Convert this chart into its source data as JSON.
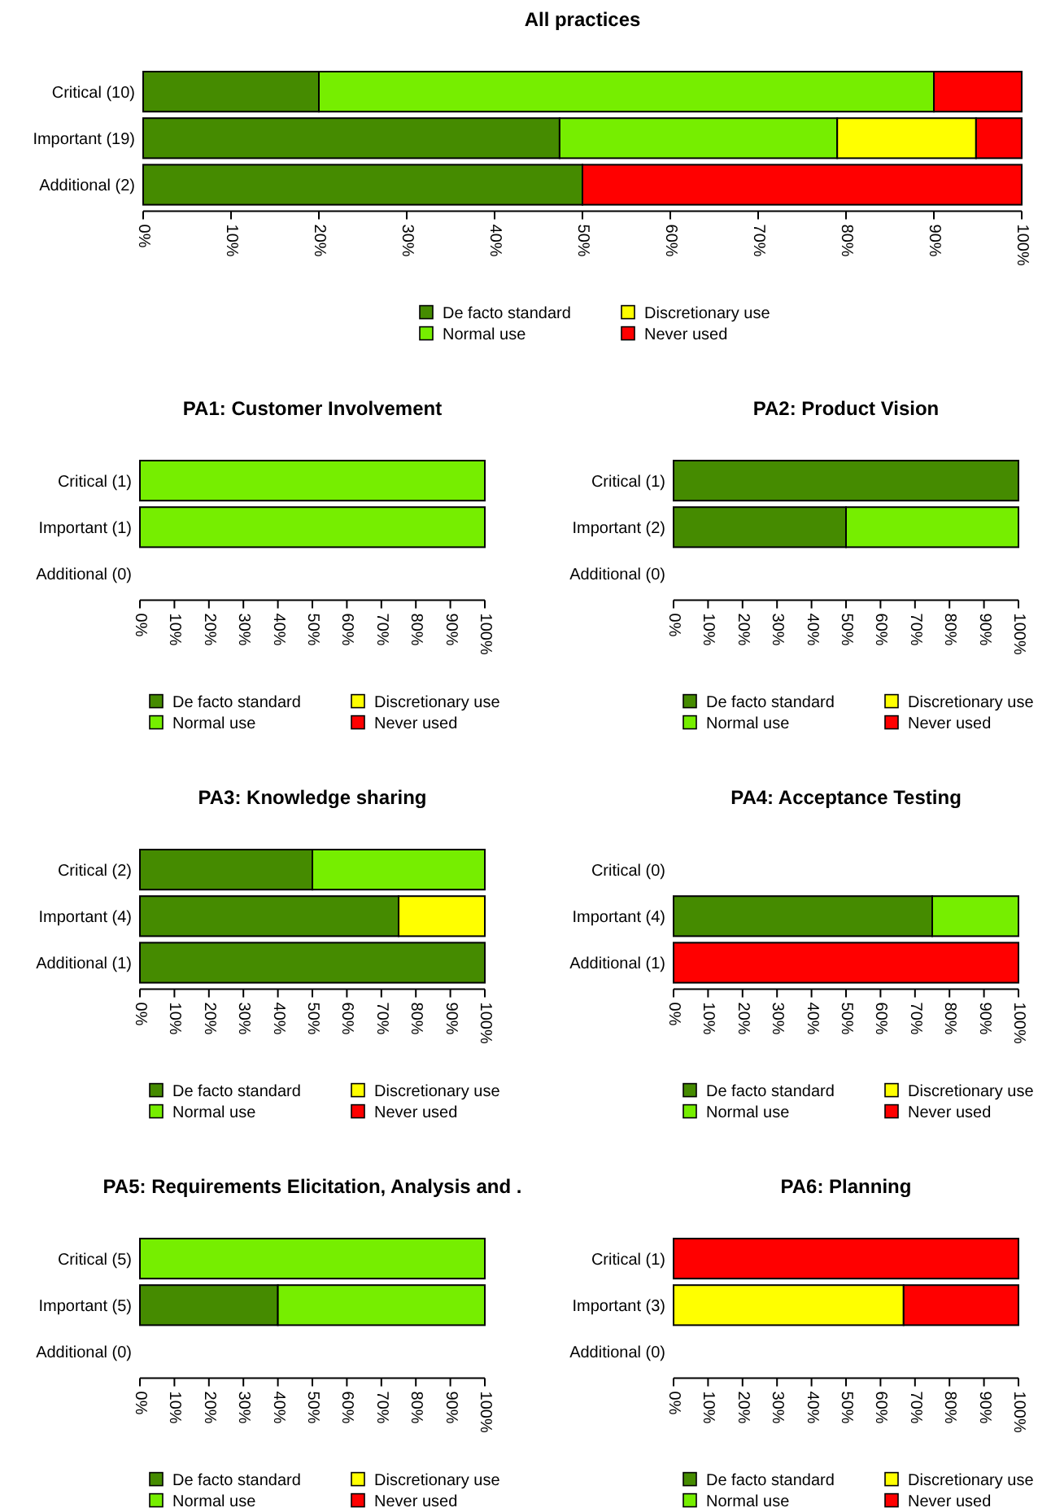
{
  "chart_data": [
    {
      "type": "bar",
      "title": "All practices",
      "orientation": "horizontal",
      "stacked": true,
      "legend": "bottom",
      "categories": [
        "Critical (10)",
        "Important (19)",
        "Additional (2)"
      ],
      "xlim": [
        0,
        100
      ],
      "xticks": [
        {
          "value": 0,
          "label": "0%"
        },
        {
          "value": 10,
          "label": "10%"
        },
        {
          "value": 20,
          "label": "20%"
        },
        {
          "value": 30,
          "label": "30%"
        },
        {
          "value": 40,
          "label": "40%"
        },
        {
          "value": 50,
          "label": "50%"
        },
        {
          "value": 60,
          "label": "60%"
        },
        {
          "value": 70,
          "label": "70%"
        },
        {
          "value": 80,
          "label": "80%"
        },
        {
          "value": 90,
          "label": "90%"
        },
        {
          "value": 100,
          "label": "100%"
        }
      ],
      "series": [
        {
          "name": "De facto standard",
          "color": "#458b00",
          "values": [
            20,
            47.4,
            50
          ]
        },
        {
          "name": "Normal use",
          "color": "#76ee00",
          "values": [
            70,
            31.6,
            null
          ]
        },
        {
          "name": "Discretionary use",
          "color": "#ffff00",
          "values": [
            null,
            15.8,
            null
          ]
        },
        {
          "name": "Never used",
          "color": "#ff0000",
          "values": [
            10,
            5.2,
            50
          ]
        }
      ]
    },
    {
      "type": "bar",
      "title": "PA1: Customer Involvement",
      "orientation": "horizontal",
      "stacked": true,
      "legend": "bottom",
      "categories": [
        "Critical (1)",
        "Important (1)",
        "Additional (0)"
      ],
      "xlim": [
        0,
        100
      ],
      "xticks": [
        {
          "value": 0,
          "label": "0%"
        },
        {
          "value": 10,
          "label": "10%"
        },
        {
          "value": 20,
          "label": "20%"
        },
        {
          "value": 30,
          "label": "30%"
        },
        {
          "value": 40,
          "label": "40%"
        },
        {
          "value": 50,
          "label": "50%"
        },
        {
          "value": 60,
          "label": "60%"
        },
        {
          "value": 70,
          "label": "70%"
        },
        {
          "value": 80,
          "label": "80%"
        },
        {
          "value": 90,
          "label": "90%"
        },
        {
          "value": 100,
          "label": "100%"
        }
      ],
      "series": [
        {
          "name": "De facto standard",
          "color": "#458b00",
          "values": [
            null,
            null,
            null
          ]
        },
        {
          "name": "Normal use",
          "color": "#76ee00",
          "values": [
            100,
            100,
            null
          ]
        },
        {
          "name": "Discretionary use",
          "color": "#ffff00",
          "values": [
            null,
            null,
            null
          ]
        },
        {
          "name": "Never used",
          "color": "#ff0000",
          "values": [
            null,
            null,
            null
          ]
        }
      ]
    },
    {
      "type": "bar",
      "title": "PA2: Product Vision",
      "orientation": "horizontal",
      "stacked": true,
      "legend": "bottom",
      "categories": [
        "Critical (1)",
        "Important (2)",
        "Additional (0)"
      ],
      "xlim": [
        0,
        100
      ],
      "xticks": [
        {
          "value": 0,
          "label": "0%"
        },
        {
          "value": 10,
          "label": "10%"
        },
        {
          "value": 20,
          "label": "20%"
        },
        {
          "value": 30,
          "label": "30%"
        },
        {
          "value": 40,
          "label": "40%"
        },
        {
          "value": 50,
          "label": "50%"
        },
        {
          "value": 60,
          "label": "60%"
        },
        {
          "value": 70,
          "label": "70%"
        },
        {
          "value": 80,
          "label": "80%"
        },
        {
          "value": 90,
          "label": "90%"
        },
        {
          "value": 100,
          "label": "100%"
        }
      ],
      "series": [
        {
          "name": "De facto standard",
          "color": "#458b00",
          "values": [
            100,
            50,
            null
          ]
        },
        {
          "name": "Normal use",
          "color": "#76ee00",
          "values": [
            null,
            50,
            null
          ]
        },
        {
          "name": "Discretionary use",
          "color": "#ffff00",
          "values": [
            null,
            null,
            null
          ]
        },
        {
          "name": "Never used",
          "color": "#ff0000",
          "values": [
            null,
            null,
            null
          ]
        }
      ]
    },
    {
      "type": "bar",
      "title": "PA3: Knowledge sharing",
      "orientation": "horizontal",
      "stacked": true,
      "legend": "bottom",
      "categories": [
        "Critical (2)",
        "Important (4)",
        "Additional (1)"
      ],
      "xlim": [
        0,
        100
      ],
      "xticks": [
        {
          "value": 0,
          "label": "0%"
        },
        {
          "value": 10,
          "label": "10%"
        },
        {
          "value": 20,
          "label": "20%"
        },
        {
          "value": 30,
          "label": "30%"
        },
        {
          "value": 40,
          "label": "40%"
        },
        {
          "value": 50,
          "label": "50%"
        },
        {
          "value": 60,
          "label": "60%"
        },
        {
          "value": 70,
          "label": "70%"
        },
        {
          "value": 80,
          "label": "80%"
        },
        {
          "value": 90,
          "label": "90%"
        },
        {
          "value": 100,
          "label": "100%"
        }
      ],
      "series": [
        {
          "name": "De facto standard",
          "color": "#458b00",
          "values": [
            50,
            75,
            100
          ]
        },
        {
          "name": "Normal use",
          "color": "#76ee00",
          "values": [
            50,
            null,
            null
          ]
        },
        {
          "name": "Discretionary use",
          "color": "#ffff00",
          "values": [
            null,
            25,
            null
          ]
        },
        {
          "name": "Never used",
          "color": "#ff0000",
          "values": [
            null,
            null,
            null
          ]
        }
      ]
    },
    {
      "type": "bar",
      "title": "PA4: Acceptance Testing",
      "orientation": "horizontal",
      "stacked": true,
      "legend": "bottom",
      "categories": [
        "Critical (0)",
        "Important (4)",
        "Additional (1)"
      ],
      "xlim": [
        0,
        100
      ],
      "xticks": [
        {
          "value": 0,
          "label": "0%"
        },
        {
          "value": 10,
          "label": "10%"
        },
        {
          "value": 20,
          "label": "20%"
        },
        {
          "value": 30,
          "label": "30%"
        },
        {
          "value": 40,
          "label": "40%"
        },
        {
          "value": 50,
          "label": "50%"
        },
        {
          "value": 60,
          "label": "60%"
        },
        {
          "value": 70,
          "label": "70%"
        },
        {
          "value": 80,
          "label": "80%"
        },
        {
          "value": 90,
          "label": "90%"
        },
        {
          "value": 100,
          "label": "100%"
        }
      ],
      "series": [
        {
          "name": "De facto standard",
          "color": "#458b00",
          "values": [
            null,
            75,
            null
          ]
        },
        {
          "name": "Normal use",
          "color": "#76ee00",
          "values": [
            null,
            25,
            null
          ]
        },
        {
          "name": "Discretionary use",
          "color": "#ffff00",
          "values": [
            null,
            null,
            null
          ]
        },
        {
          "name": "Never used",
          "color": "#ff0000",
          "values": [
            null,
            null,
            100
          ]
        }
      ]
    },
    {
      "type": "bar",
      "title": "PA5: Requirements Elicitation, Analysis and .",
      "orientation": "horizontal",
      "stacked": true,
      "legend": "bottom",
      "categories": [
        "Critical (5)",
        "Important (5)",
        "Additional (0)"
      ],
      "xlim": [
        0,
        100
      ],
      "xticks": [
        {
          "value": 0,
          "label": "0%"
        },
        {
          "value": 10,
          "label": "10%"
        },
        {
          "value": 20,
          "label": "20%"
        },
        {
          "value": 30,
          "label": "30%"
        },
        {
          "value": 40,
          "label": "40%"
        },
        {
          "value": 50,
          "label": "50%"
        },
        {
          "value": 60,
          "label": "60%"
        },
        {
          "value": 70,
          "label": "70%"
        },
        {
          "value": 80,
          "label": "80%"
        },
        {
          "value": 90,
          "label": "90%"
        },
        {
          "value": 100,
          "label": "100%"
        }
      ],
      "series": [
        {
          "name": "De facto standard",
          "color": "#458b00",
          "values": [
            null,
            40,
            null
          ]
        },
        {
          "name": "Normal use",
          "color": "#76ee00",
          "values": [
            100,
            60,
            null
          ]
        },
        {
          "name": "Discretionary use",
          "color": "#ffff00",
          "values": [
            null,
            null,
            null
          ]
        },
        {
          "name": "Never used",
          "color": "#ff0000",
          "values": [
            null,
            null,
            null
          ]
        }
      ]
    },
    {
      "type": "bar",
      "title": "PA6: Planning",
      "orientation": "horizontal",
      "stacked": true,
      "legend": "bottom",
      "categories": [
        "Critical (1)",
        "Important (3)",
        "Additional (0)"
      ],
      "xlim": [
        0,
        100
      ],
      "xticks": [
        {
          "value": 0,
          "label": "0%"
        },
        {
          "value": 10,
          "label": "10%"
        },
        {
          "value": 20,
          "label": "20%"
        },
        {
          "value": 30,
          "label": "30%"
        },
        {
          "value": 40,
          "label": "40%"
        },
        {
          "value": 50,
          "label": "50%"
        },
        {
          "value": 60,
          "label": "60%"
        },
        {
          "value": 70,
          "label": "70%"
        },
        {
          "value": 80,
          "label": "80%"
        },
        {
          "value": 90,
          "label": "90%"
        },
        {
          "value": 100,
          "label": "100%"
        }
      ],
      "series": [
        {
          "name": "De facto standard",
          "color": "#458b00",
          "values": [
            null,
            null,
            null
          ]
        },
        {
          "name": "Normal use",
          "color": "#76ee00",
          "values": [
            null,
            null,
            null
          ]
        },
        {
          "name": "Discretionary use",
          "color": "#ffff00",
          "values": [
            null,
            66.7,
            null
          ]
        },
        {
          "name": "Never used",
          "color": "#ff0000",
          "values": [
            100,
            33.3,
            null
          ]
        }
      ]
    }
  ]
}
